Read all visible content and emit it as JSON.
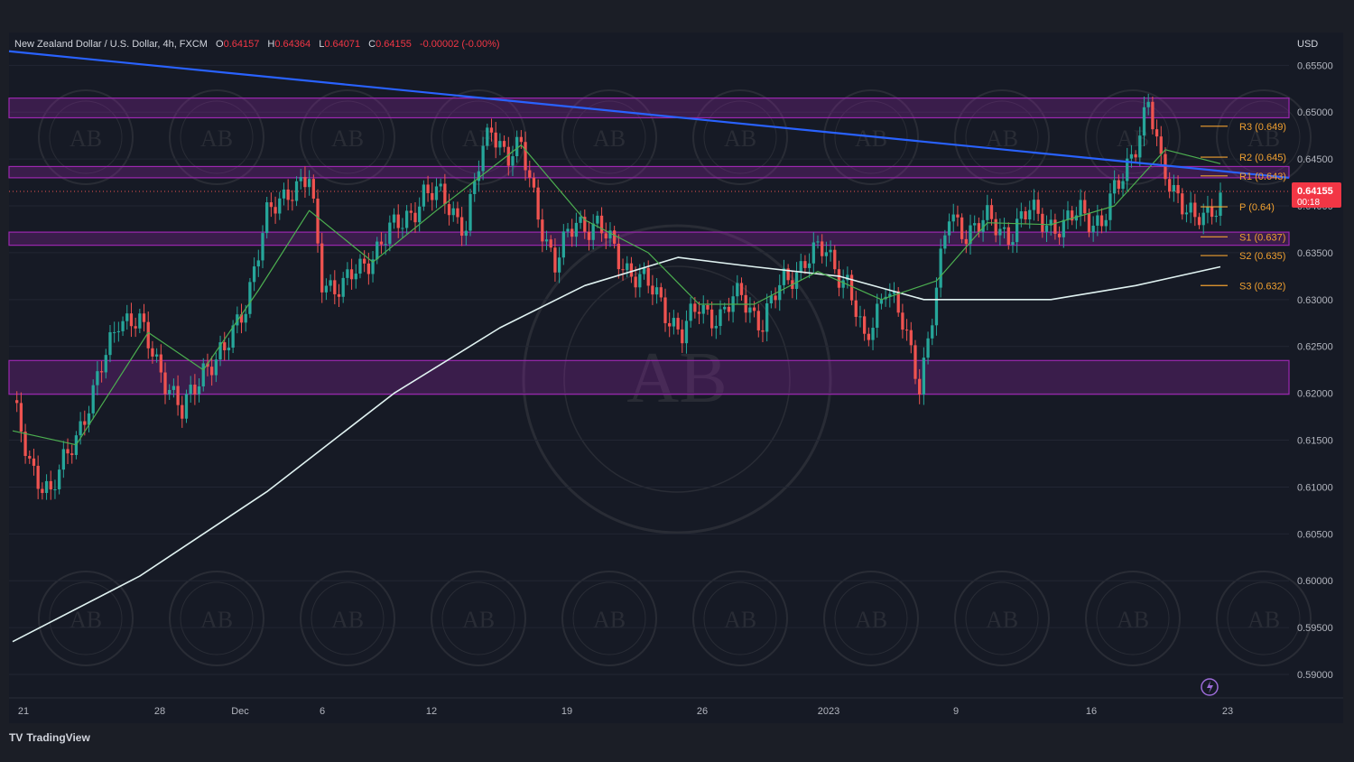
{
  "header": {
    "symbol": "New Zealand Dollar / U.S. Dollar, 4h, FXCM",
    "o_label": "O",
    "o_value": "0.64157",
    "h_label": "H",
    "h_value": "0.64364",
    "l_label": "L",
    "l_value": "0.64071",
    "c_label": "C",
    "c_value": "0.64155",
    "change": "-0.00002 (-0.00%)"
  },
  "currency": "USD",
  "price_badge": {
    "price": "0.64155",
    "countdown": "00:18"
  },
  "brand": "TradingView",
  "watermark_text": "AB",
  "colors": {
    "background": "#161a25",
    "frame": "#1b1e26",
    "up": "#26a69a",
    "down": "#ef5350",
    "zone": "#9c27b0",
    "trendline": "#2962ff",
    "ma_fast": "#4caf50",
    "ma_slow": "#e0f2f1",
    "pivot": "#f0a030",
    "badge": "#f23645"
  },
  "chart_data": {
    "type": "candlestick",
    "ylim": [
      0.5875,
      0.6585
    ],
    "yticks": [
      "0.65500",
      "0.65000",
      "0.64500",
      "0.64000",
      "0.63500",
      "0.63000",
      "0.62500",
      "0.62000",
      "0.61500",
      "0.61000",
      "0.60500",
      "0.60000",
      "0.59500",
      "0.59000"
    ],
    "xticks": [
      "21",
      "28",
      "Dec",
      "6",
      "12",
      "19",
      "26",
      "2023",
      "9",
      "16",
      "23"
    ],
    "price_path": [
      [
        0,
        0.6185
      ],
      [
        4,
        0.613
      ],
      [
        9,
        0.6088
      ],
      [
        14,
        0.615
      ],
      [
        19,
        0.6195
      ],
      [
        25,
        0.6285
      ],
      [
        30,
        0.627
      ],
      [
        35,
        0.6228
      ],
      [
        40,
        0.6175
      ],
      [
        45,
        0.623
      ],
      [
        50,
        0.624
      ],
      [
        55,
        0.63
      ],
      [
        60,
        0.6385
      ],
      [
        65,
        0.642
      ],
      [
        70,
        0.6425
      ],
      [
        73,
        0.632
      ],
      [
        78,
        0.6315
      ],
      [
        82,
        0.633
      ],
      [
        87,
        0.6365
      ],
      [
        92,
        0.638
      ],
      [
        97,
        0.6415
      ],
      [
        102,
        0.6405
      ],
      [
        107,
        0.638
      ],
      [
        110,
        0.644
      ],
      [
        113,
        0.6485
      ],
      [
        117,
        0.6455
      ],
      [
        120,
        0.6458
      ],
      [
        124,
        0.6395
      ],
      [
        128,
        0.6335
      ],
      [
        133,
        0.6385
      ],
      [
        138,
        0.6378
      ],
      [
        143,
        0.6345
      ],
      [
        148,
        0.6322
      ],
      [
        153,
        0.6298
      ],
      [
        158,
        0.6262
      ],
      [
        162,
        0.6292
      ],
      [
        167,
        0.6282
      ],
      [
        172,
        0.6305
      ],
      [
        177,
        0.6275
      ],
      [
        182,
        0.632
      ],
      [
        187,
        0.6342
      ],
      [
        192,
        0.6352
      ],
      [
        197,
        0.6318
      ],
      [
        201,
        0.625
      ],
      [
        206,
        0.632
      ],
      [
        210,
        0.627
      ],
      [
        214,
        0.6212
      ],
      [
        217,
        0.6285
      ],
      [
        221,
        0.6388
      ],
      [
        225,
        0.6375
      ],
      [
        230,
        0.6382
      ],
      [
        235,
        0.6372
      ],
      [
        240,
        0.6392
      ],
      [
        244,
        0.6385
      ],
      [
        248,
        0.6375
      ],
      [
        252,
        0.6395
      ],
      [
        257,
        0.6382
      ],
      [
        261,
        0.642
      ],
      [
        265,
        0.647
      ],
      [
        268,
        0.6508
      ],
      [
        271,
        0.644
      ],
      [
        275,
        0.6415
      ],
      [
        279,
        0.638
      ],
      [
        282,
        0.6388
      ],
      [
        285,
        0.6415
      ]
    ],
    "zones": [
      [
        0.6494,
        0.6515
      ],
      [
        0.643,
        0.6442
      ],
      [
        0.6358,
        0.6372
      ],
      [
        0.6199,
        0.6235
      ]
    ],
    "trendline": [
      [
        0.6565,
        0
      ],
      [
        0.643,
        1
      ]
    ],
    "ma_fast_path": [
      [
        0,
        0.616
      ],
      [
        15,
        0.6145
      ],
      [
        32,
        0.6265
      ],
      [
        45,
        0.6225
      ],
      [
        58,
        0.631
      ],
      [
        70,
        0.6395
      ],
      [
        85,
        0.634
      ],
      [
        100,
        0.6395
      ],
      [
        120,
        0.6465
      ],
      [
        135,
        0.6385
      ],
      [
        150,
        0.635
      ],
      [
        162,
        0.6295
      ],
      [
        175,
        0.6295
      ],
      [
        190,
        0.633
      ],
      [
        205,
        0.63
      ],
      [
        218,
        0.632
      ],
      [
        230,
        0.6382
      ],
      [
        245,
        0.638
      ],
      [
        260,
        0.64
      ],
      [
        272,
        0.646
      ],
      [
        285,
        0.6445
      ]
    ],
    "ma_slow_path": [
      [
        0,
        0.5935
      ],
      [
        30,
        0.6005
      ],
      [
        60,
        0.6095
      ],
      [
        90,
        0.62
      ],
      [
        115,
        0.627
      ],
      [
        135,
        0.6315
      ],
      [
        157,
        0.6345
      ],
      [
        175,
        0.6335
      ],
      [
        195,
        0.6325
      ],
      [
        215,
        0.63
      ],
      [
        245,
        0.63
      ],
      [
        265,
        0.6315
      ],
      [
        285,
        0.6335
      ]
    ],
    "pivots": [
      {
        "label": "R3 (0.649)",
        "value": 0.6485
      },
      {
        "label": "R2 (0.645)",
        "value": 0.6452
      },
      {
        "label": "R1 (0.643)",
        "value": 0.6432
      },
      {
        "label": "P (0.64)",
        "value": 0.6399
      },
      {
        "label": "S1 (0.637)",
        "value": 0.6367
      },
      {
        "label": "S2 (0.635)",
        "value": 0.6347
      },
      {
        "label": "S3 (0.632)",
        "value": 0.6315
      }
    ]
  }
}
